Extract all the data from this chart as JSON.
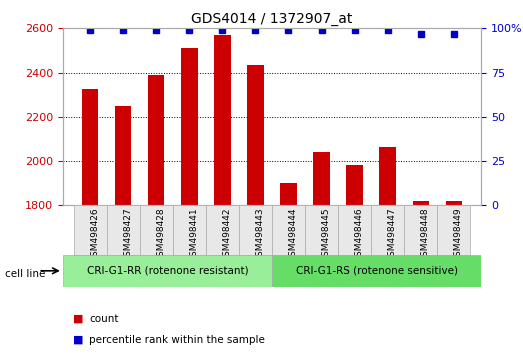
{
  "title": "GDS4014 / 1372907_at",
  "categories": [
    "GSM498426",
    "GSM498427",
    "GSM498428",
    "GSM498441",
    "GSM498442",
    "GSM498443",
    "GSM498444",
    "GSM498445",
    "GSM498446",
    "GSM498447",
    "GSM498448",
    "GSM498449"
  ],
  "bar_values": [
    2325,
    2250,
    2390,
    2510,
    2570,
    2435,
    1900,
    2040,
    1980,
    2065,
    1820,
    1820
  ],
  "percentile_values": [
    99,
    99,
    99,
    99,
    99,
    99,
    99,
    99,
    99,
    99,
    97,
    97
  ],
  "bar_color": "#cc0000",
  "percentile_color": "#0000cc",
  "ylim_left": [
    1800,
    2600
  ],
  "ylim_right": [
    0,
    100
  ],
  "yticks_left": [
    1800,
    2000,
    2200,
    2400,
    2600
  ],
  "yticks_right": [
    0,
    25,
    50,
    75,
    100
  ],
  "ytick_labels_right": [
    "0",
    "25",
    "50",
    "75",
    "100%"
  ],
  "group1_label": "CRI-G1-RR (rotenone resistant)",
  "group2_label": "CRI-G1-RS (rotenone sensitive)",
  "group1_indices": [
    0,
    1,
    2,
    3,
    4,
    5
  ],
  "group2_indices": [
    6,
    7,
    8,
    9,
    10,
    11
  ],
  "group_color1": "#99ee99",
  "group_color2": "#66dd66",
  "cell_line_label": "cell line",
  "legend_count_label": "count",
  "legend_percentile_label": "percentile rank within the sample",
  "background_color": "#ffffff",
  "plot_bg_color": "#ffffff",
  "grid_color": "#000000",
  "tick_label_color_left": "#cc0000",
  "tick_label_color_right": "#0000cc",
  "bar_width": 0.5
}
